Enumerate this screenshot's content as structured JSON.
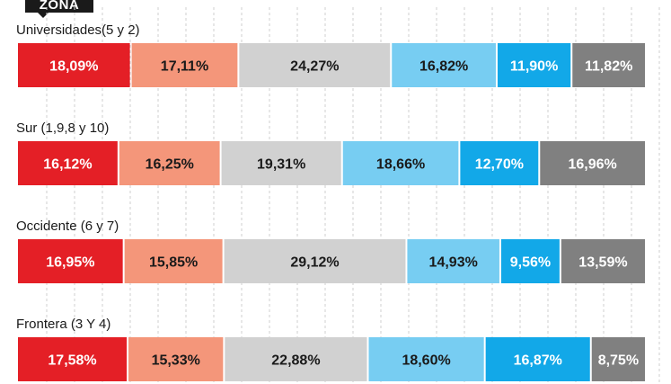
{
  "header": {
    "label": "ZONA"
  },
  "chart_data": {
    "type": "bar",
    "stacked": true,
    "orientation": "horizontal",
    "normalized_percent": true,
    "grid": true,
    "categories": [
      "Universidades(5 y 2)",
      "Sur (1,9,8 y 10)",
      "Occidente (6 y 7)",
      "Frontera (3 Y 4)"
    ],
    "series": [
      {
        "color": "#e41f26",
        "values": [
          18.09,
          16.12,
          16.95,
          17.58
        ],
        "labels": [
          "18,09%",
          "16,12%",
          "16,95%",
          "17,58%"
        ]
      },
      {
        "color": "#f4967a",
        "values": [
          17.11,
          16.25,
          15.85,
          15.33
        ],
        "labels": [
          "17,11%",
          "16,25%",
          "15,85%",
          "15,33%"
        ]
      },
      {
        "color": "#d1d1d1",
        "values": [
          24.27,
          19.31,
          29.12,
          22.88
        ],
        "labels": [
          "24,27%",
          "19,31%",
          "29,12%",
          "22,88%"
        ]
      },
      {
        "color": "#77cdf2",
        "values": [
          16.82,
          18.66,
          14.93,
          18.6
        ],
        "labels": [
          "16,82%",
          "18,66%",
          "14,93%",
          "18,60%"
        ]
      },
      {
        "color": "#12a8e8",
        "values": [
          11.9,
          12.7,
          9.56,
          16.87
        ],
        "labels": [
          "11,90%",
          "12,70%",
          "9,56%",
          "16,87%"
        ]
      },
      {
        "color": "#808080",
        "values": [
          11.82,
          16.96,
          13.59,
          8.75
        ],
        "labels": [
          "11,82%",
          "16,96%",
          "13,59%",
          "8,75%"
        ]
      }
    ],
    "label_colors": [
      "#ffffff",
      "#1a1a1a",
      "#1a1a1a",
      "#1a1a1a",
      "#ffffff",
      "#ffffff"
    ]
  }
}
